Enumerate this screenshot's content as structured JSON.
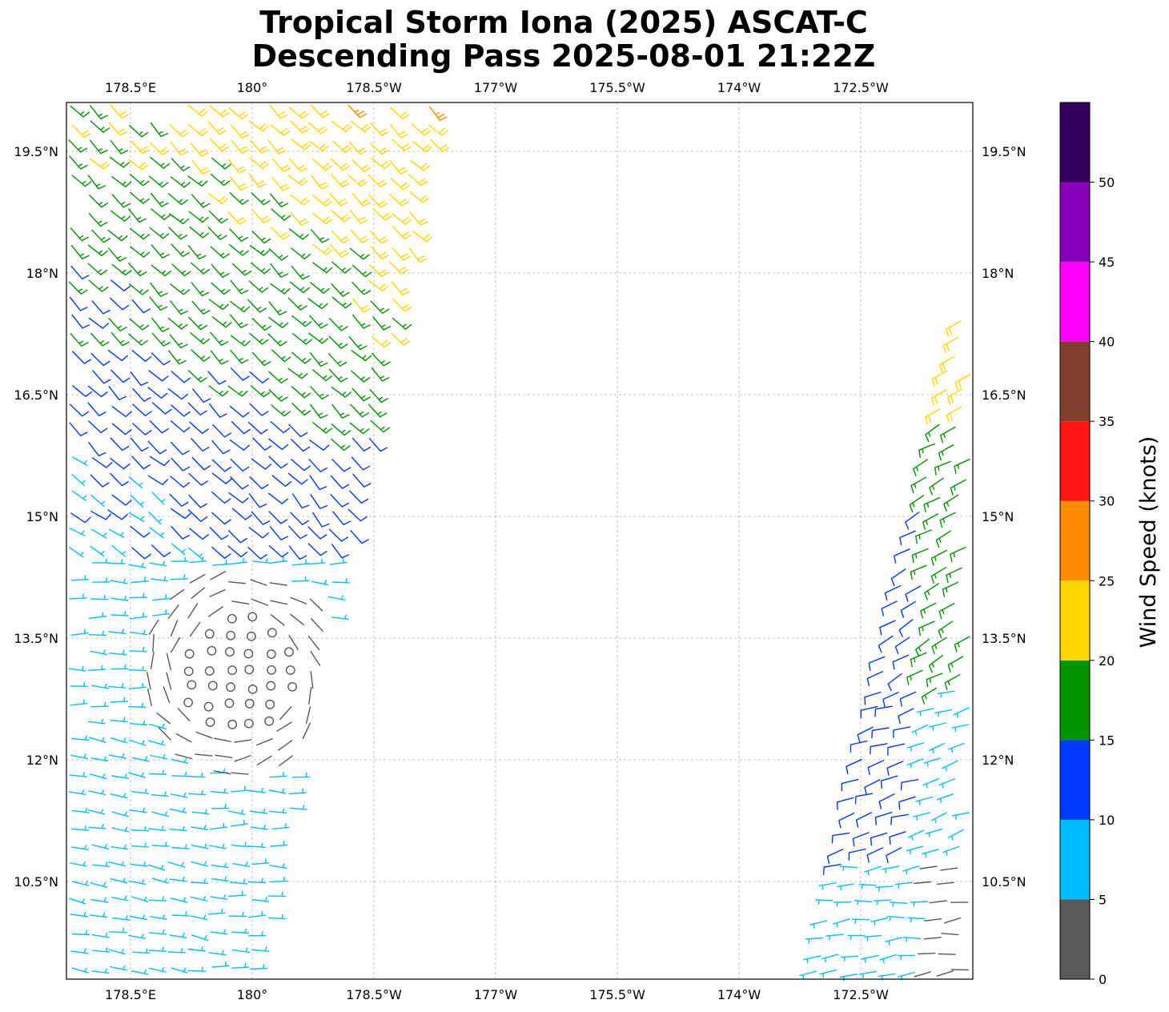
{
  "title_line1": "Tropical Storm Iona (2025) ASCAT-C",
  "title_line2": "Descending Pass 2025-08-01 21:22Z",
  "map": {
    "x_tick_labels": [
      "178.5°E",
      "180°",
      "178.5°W",
      "177°W",
      "175.5°W",
      "174°W",
      "172.5°W"
    ],
    "y_tick_labels": [
      "19.5°N",
      "18°N",
      "16.5°N",
      "15°N",
      "13.5°N",
      "12°N",
      "10.5°N"
    ],
    "gridlines": true
  },
  "colorbar": {
    "label": "Wind Speed (knots)",
    "tick_labels": [
      "0",
      "5",
      "10",
      "15",
      "20",
      "25",
      "30",
      "35",
      "40",
      "45",
      "50"
    ],
    "bins": [
      {
        "min": 0,
        "max": 5,
        "color": "#595959"
      },
      {
        "min": 5,
        "max": 10,
        "color": "#00bfff"
      },
      {
        "min": 10,
        "max": 15,
        "color": "#0039ff"
      },
      {
        "min": 15,
        "max": 20,
        "color": "#009400"
      },
      {
        "min": 20,
        "max": 25,
        "color": "#ffd500"
      },
      {
        "min": 25,
        "max": 30,
        "color": "#ff8c00"
      },
      {
        "min": 30,
        "max": 35,
        "color": "#ff1212"
      },
      {
        "min": 35,
        "max": 40,
        "color": "#813e2b"
      },
      {
        "min": 40,
        "max": 45,
        "color": "#ff00ff"
      },
      {
        "min": 45,
        "max": 50,
        "color": "#8600bc"
      },
      {
        "min": 50,
        "max": 55,
        "color": "#30005c"
      }
    ]
  },
  "chart_data": {
    "type": "scatter",
    "x_range_lon": [
      177.7,
      -171.6
    ],
    "y_range_lat": [
      9.3,
      20.1
    ],
    "swaths": [
      {
        "lon_west": 177.7,
        "lon_east_top": -177.2,
        "lon_east_bottom": -179.9,
        "lat_min": 9.3,
        "lat_max": 20.1
      },
      {
        "lon_west_top": -171.7,
        "lon_west_bottom": -172.7,
        "lon_east": -171.6,
        "lat_min": 9.3,
        "lat_max": 17.4
      }
    ],
    "calm_center_lon": -180.0,
    "calm_center_lat": 13.0
  }
}
